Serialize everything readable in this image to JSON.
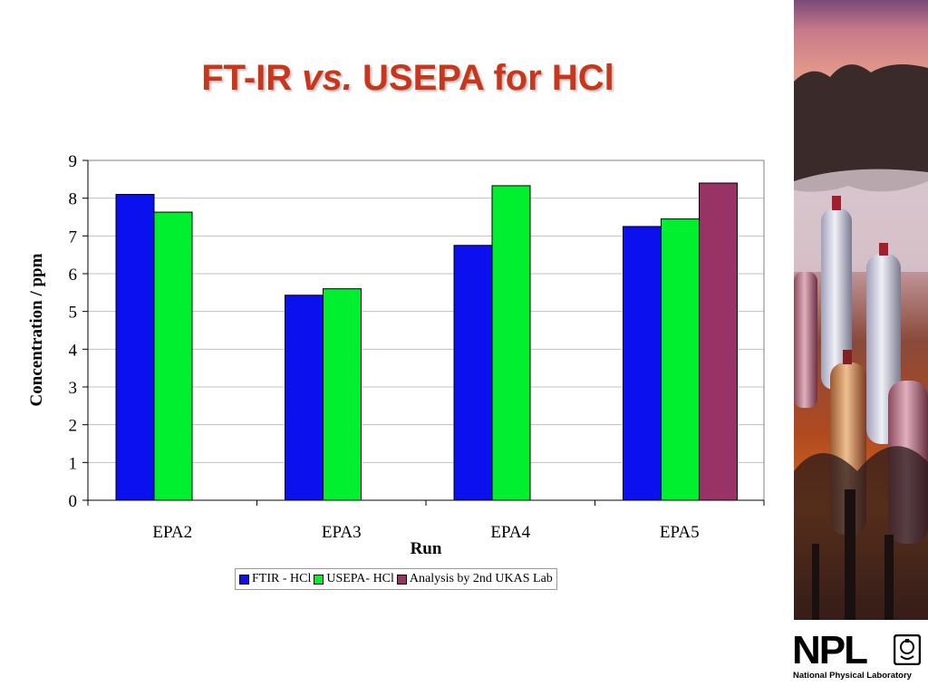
{
  "slide": {
    "title_main": "FT-IR ",
    "title_vs": "vs.",
    "title_rest": " USEPA for HCl"
  },
  "chart_data": {
    "type": "bar",
    "categories": [
      "EPA2",
      "EPA3",
      "EPA4",
      "EPA5"
    ],
    "series": [
      {
        "name": "FTIR - HCl",
        "color": "#0a10ee",
        "values": [
          8.1,
          5.43,
          6.75,
          7.25
        ]
      },
      {
        "name": "USEPA- HCl",
        "color": "#00f030",
        "values": [
          7.63,
          5.6,
          8.33,
          7.45
        ]
      },
      {
        "name": "Analysis by 2nd UKAS Lab",
        "color": "#993366",
        "values": [
          null,
          null,
          null,
          8.4
        ]
      }
    ],
    "xlabel": "Run",
    "ylabel": "Concentration / ppm",
    "ylim": [
      0,
      9
    ],
    "yticks": [
      0,
      1,
      2,
      3,
      4,
      5,
      6,
      7,
      8,
      9
    ],
    "grid": true,
    "legend_position": "bottom"
  },
  "logo": {
    "name": "NPL",
    "subtitle": "National Physical Laboratory"
  },
  "colors": {
    "title": "#c8361b",
    "plot_border": "#808080",
    "gridline": "#c0c0c0"
  }
}
